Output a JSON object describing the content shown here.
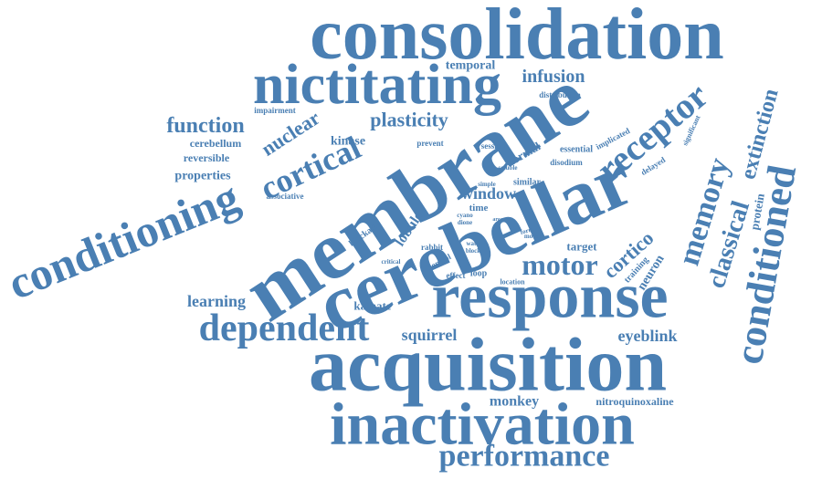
{
  "colors": {
    "word": "#4a7fb3",
    "background": "#ffffff"
  },
  "words": [
    {
      "text": "consolidation",
      "weight": 10
    },
    {
      "text": "membrane",
      "weight": 10
    },
    {
      "text": "cerebellar",
      "weight": 10
    },
    {
      "text": "response",
      "weight": 9
    },
    {
      "text": "acquisition",
      "weight": 9
    },
    {
      "text": "nictitating",
      "weight": 8
    },
    {
      "text": "conditioning",
      "weight": 7
    },
    {
      "text": "inactivation",
      "weight": 8
    },
    {
      "text": "conditioned",
      "weight": 6
    },
    {
      "text": "receptor",
      "weight": 5
    },
    {
      "text": "dependent",
      "weight": 5
    },
    {
      "text": "performance",
      "weight": 4
    },
    {
      "text": "cortical",
      "weight": 4
    },
    {
      "text": "memory",
      "weight": 4
    },
    {
      "text": "motor",
      "weight": 4
    },
    {
      "text": "classical",
      "weight": 4
    },
    {
      "text": "extinction",
      "weight": 3
    },
    {
      "text": "function",
      "weight": 3
    },
    {
      "text": "plasticity",
      "weight": 3
    },
    {
      "text": "nuclear",
      "weight": 3
    },
    {
      "text": "infusion",
      "weight": 2
    },
    {
      "text": "cortico",
      "weight": 2
    },
    {
      "text": "eyeblink",
      "weight": 2
    },
    {
      "text": "learning",
      "weight": 2
    },
    {
      "text": "squirrel",
      "weight": 2
    },
    {
      "text": "window",
      "weight": 2
    },
    {
      "text": "monkey",
      "weight": 2
    },
    {
      "text": "lobule",
      "weight": 2
    },
    {
      "text": "neuron",
      "weight": 2
    },
    {
      "text": "protein",
      "weight": 1
    },
    {
      "text": "temporal",
      "weight": 1
    },
    {
      "text": "properties",
      "weight": 1
    },
    {
      "text": "cerebellum",
      "weight": 1
    },
    {
      "text": "reversible",
      "weight": 1
    },
    {
      "text": "kinase",
      "weight": 1
    },
    {
      "text": "normal",
      "weight": 1
    },
    {
      "text": "target",
      "weight": 1
    },
    {
      "text": "kainate",
      "weight": 1
    },
    {
      "text": "nitroquinoxaline",
      "weight": 1
    },
    {
      "text": "impairment",
      "weight": 1
    },
    {
      "text": "distribution",
      "weight": 1
    },
    {
      "text": "session",
      "weight": 1
    },
    {
      "text": "prevent",
      "weight": 1
    },
    {
      "text": "essential",
      "weight": 1
    },
    {
      "text": "disodium",
      "weight": 1
    },
    {
      "text": "delayed",
      "weight": 1
    },
    {
      "text": "implicated",
      "weight": 1
    },
    {
      "text": "significant",
      "weight": 1
    },
    {
      "text": "associative",
      "weight": 1
    },
    {
      "text": "blockade",
      "weight": 1
    },
    {
      "text": "rabbit",
      "weight": 1
    },
    {
      "text": "control",
      "weight": 1
    },
    {
      "text": "effect",
      "weight": 1
    },
    {
      "text": "loop",
      "weight": 1
    },
    {
      "text": "location",
      "weight": 1
    },
    {
      "text": "training",
      "weight": 1
    },
    {
      "text": "time",
      "weight": 1
    },
    {
      "text": "similar",
      "weight": 1
    },
    {
      "text": "soluble",
      "weight": 1
    },
    {
      "text": "simple",
      "weight": 1
    },
    {
      "text": "critical",
      "weight": 1
    },
    {
      "text": "water",
      "weight": 1
    },
    {
      "text": "block",
      "weight": 1
    },
    {
      "text": "form",
      "weight": 1
    },
    {
      "text": "model",
      "weight": 1
    },
    {
      "text": "cyano",
      "weight": 1
    },
    {
      "text": "dione",
      "weight": 1
    },
    {
      "text": "area",
      "weight": 1
    }
  ]
}
